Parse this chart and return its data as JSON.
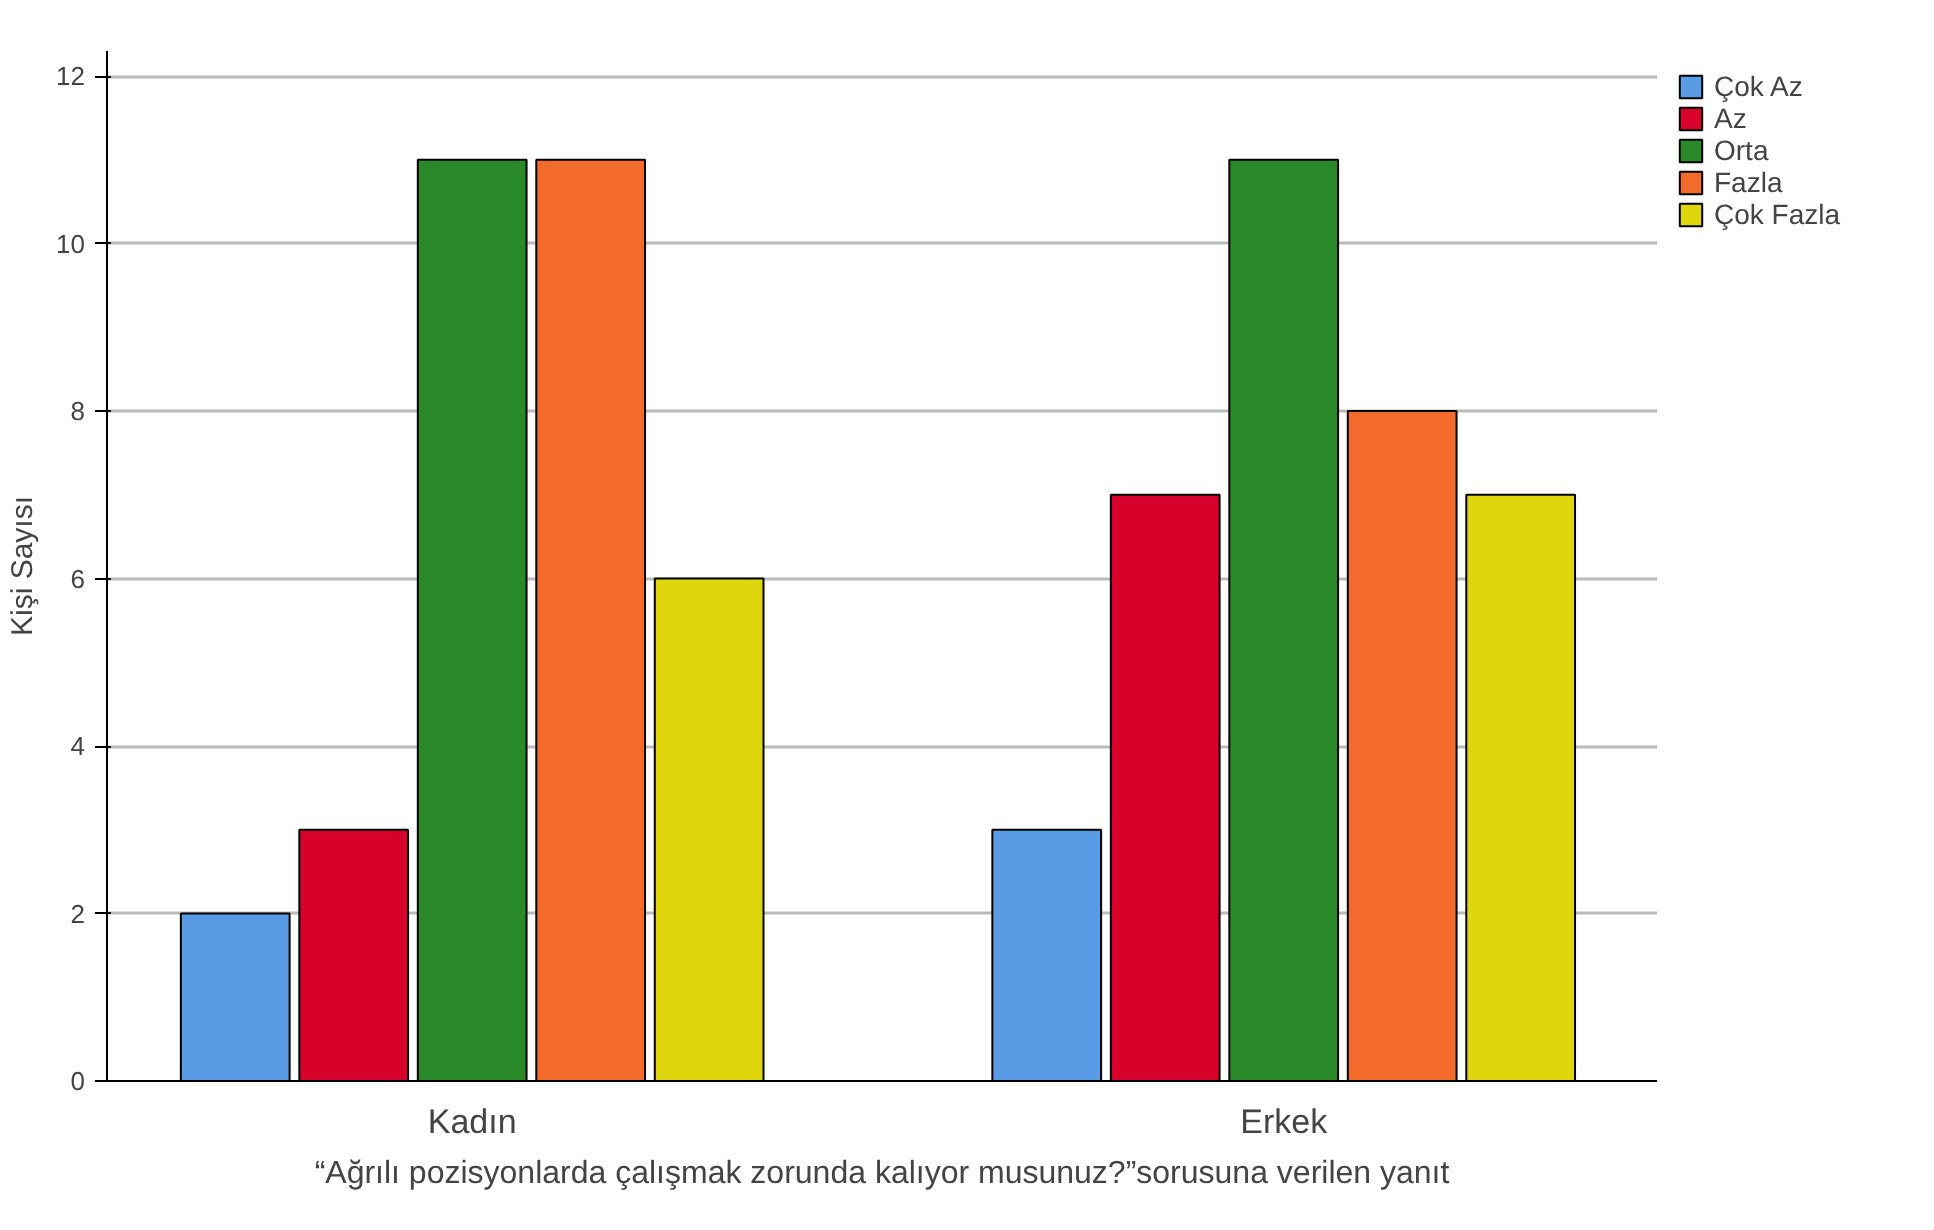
{
  "chart_data": {
    "type": "bar",
    "xlabel": "“Ağrılı pozisyonlarda çalışmak zorunda kalıyor musunuz?”sorusuna verilen yanıt",
    "ylabel": "Kişi Sayısı",
    "categories": [
      "Kadın",
      "Erkek"
    ],
    "series": [
      {
        "name": "Çok Az",
        "color": "#5a9be6",
        "values": [
          2,
          3
        ]
      },
      {
        "name": "Az",
        "color": "#d6002b",
        "values": [
          3,
          7
        ]
      },
      {
        "name": "Orta",
        "color": "#2a8a2a",
        "values": [
          11,
          11
        ]
      },
      {
        "name": "Fazla",
        "color": "#f26b2a",
        "values": [
          11,
          8
        ]
      },
      {
        "name": "Çok Fazla",
        "color": "#e0d60e",
        "values": [
          6,
          7
        ]
      }
    ],
    "ylim": [
      0,
      12.3
    ],
    "yticks": [
      0,
      2,
      4,
      6,
      8,
      10,
      12
    ],
    "grid": "y",
    "legend": "top right"
  }
}
